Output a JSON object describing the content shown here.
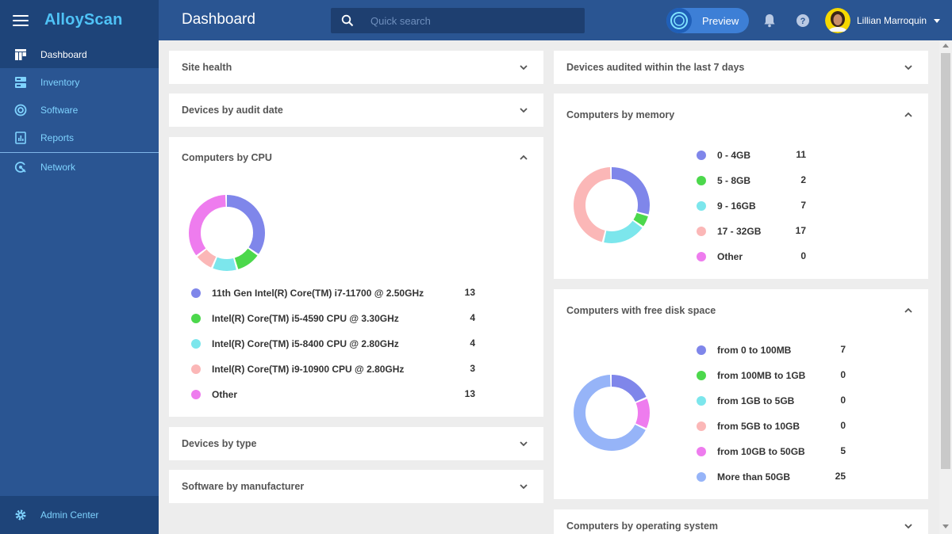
{
  "app": {
    "name": "AlloyScan"
  },
  "sidebar": {
    "items": [
      {
        "label": "Dashboard",
        "icon": "dashboard-icon",
        "active": true
      },
      {
        "label": "Inventory",
        "icon": "inventory-icon"
      },
      {
        "label": "Software",
        "icon": "software-icon"
      },
      {
        "label": "Reports",
        "icon": "reports-icon"
      },
      {
        "label": "Network",
        "icon": "network-icon"
      }
    ],
    "admin_label": "Admin Center"
  },
  "header": {
    "title": "Dashboard",
    "search_placeholder": "Quick search",
    "preview_label": "Preview",
    "user_name": "Lillian Marroquin"
  },
  "colors": {
    "purple": "#7f86ea",
    "green": "#4cd84c",
    "cyan": "#7ce6ec",
    "pink": "#fbb7b7",
    "magenta": "#ee7cee",
    "blue": "#96b4f8"
  },
  "panels": {
    "site_health": {
      "title": "Site health"
    },
    "audit_date": {
      "title": "Devices by audit date"
    },
    "cpu": {
      "title": "Computers by CPU"
    },
    "device_type": {
      "title": "Devices by type"
    },
    "software_manufacturer": {
      "title": "Software by manufacturer"
    },
    "audited_7days": {
      "title": "Devices audited within the last 7 days"
    },
    "memory": {
      "title": "Computers by memory"
    },
    "disk": {
      "title": "Computers with free disk space"
    },
    "os": {
      "title": "Computers by operating system"
    }
  },
  "chart_data": [
    {
      "type": "pie",
      "title": "Computers by CPU",
      "categories": [
        "11th Gen Intel(R) Core(TM) i7-11700 @ 2.50GHz",
        "Intel(R) Core(TM) i5-4590 CPU @ 3.30GHz",
        "Intel(R) Core(TM) i5-8400 CPU @ 2.80GHz",
        "Intel(R) Core(TM) i9-10900 CPU @ 2.80GHz",
        "Other"
      ],
      "values": [
        13,
        4,
        4,
        3,
        13
      ],
      "colors": [
        "#7f86ea",
        "#4cd84c",
        "#7ce6ec",
        "#fbb7b7",
        "#ee7cee"
      ],
      "legend": "bottom"
    },
    {
      "type": "pie",
      "title": "Computers by memory",
      "categories": [
        "0 - 4GB",
        "5 - 8GB",
        "9 - 16GB",
        "17 - 32GB",
        "Other"
      ],
      "values": [
        11,
        2,
        7,
        17,
        0
      ],
      "colors": [
        "#7f86ea",
        "#4cd84c",
        "#7ce6ec",
        "#fbb7b7",
        "#ee7cee"
      ],
      "legend": "right"
    },
    {
      "type": "pie",
      "title": "Computers with free disk space",
      "categories": [
        "from 0 to 100MB",
        "from 100MB to 1GB",
        "from 1GB to 5GB",
        "from 5GB to 10GB",
        "from 10GB to 50GB",
        "More than 50GB"
      ],
      "values": [
        7,
        0,
        0,
        0,
        5,
        25
      ],
      "colors": [
        "#7f86ea",
        "#4cd84c",
        "#7ce6ec",
        "#fbb7b7",
        "#ee7cee",
        "#96b4f8"
      ],
      "legend": "right"
    }
  ]
}
